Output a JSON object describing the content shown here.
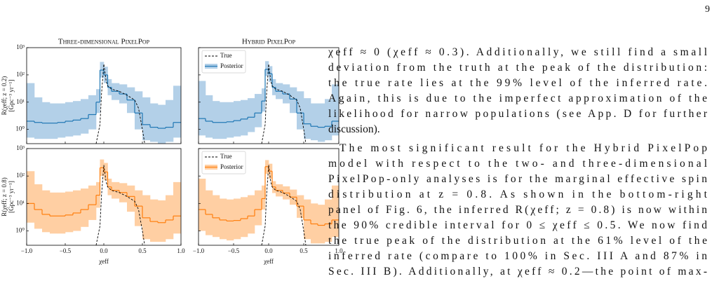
{
  "page_number": "9",
  "figure": {
    "xlabel": "χeff",
    "xlim": [
      -1,
      1
    ],
    "xticks": [
      {
        "value": -1,
        "label": "−1.0"
      },
      {
        "value": -0.5,
        "label": "−0.5"
      },
      {
        "value": 0,
        "label": "0.0"
      },
      {
        "value": 0.5,
        "label": "0.5"
      },
      {
        "value": 1,
        "label": "1.0"
      }
    ],
    "ylim": [
      0.3,
      1000
    ],
    "yticks": [
      {
        "value": 1,
        "label": "10⁰"
      },
      {
        "value": 10,
        "label": "10¹"
      },
      {
        "value": 100,
        "label": "10²"
      },
      {
        "value": 1000,
        "label": "10³"
      }
    ],
    "log_y": true,
    "bin_edges": [
      -1,
      -0.9,
      -0.8,
      -0.7,
      -0.6,
      -0.5,
      -0.4,
      -0.3,
      -0.2,
      -0.1,
      -0.05,
      0,
      0.05,
      0.1,
      0.2,
      0.3,
      0.4,
      0.5,
      0.6,
      0.7,
      0.8,
      0.9,
      1
    ],
    "true_curve": {
      "x": [
        -0.1,
        -0.05,
        -0.03,
        0,
        0.03,
        0.05,
        0.1,
        0.2,
        0.3,
        0.4,
        0.45,
        0.5,
        0.53
      ],
      "y": [
        0.3,
        1.5,
        20,
        250,
        60,
        40,
        30,
        25,
        18,
        12,
        6,
        1,
        0.3
      ]
    },
    "panels": [
      {
        "title": "Three-dimensional PixelPop",
        "ylabel": "R(χeff; z = 0.2)",
        "yunit": "[Gpc⁻³ yr⁻¹]",
        "color": "#1f77b4",
        "band_color": "#b3d0e8",
        "median": [
          2,
          1.8,
          1.7,
          1.7,
          1.8,
          2,
          2.2,
          2.5,
          3.5,
          10,
          150,
          100,
          35,
          25,
          20,
          12,
          4,
          1.5,
          1.2,
          1.1,
          1.2,
          1.8
        ],
        "lower": [
          0.5,
          0.45,
          0.45,
          0.45,
          0.5,
          0.55,
          0.6,
          0.7,
          1,
          4,
          80,
          50,
          18,
          12,
          9,
          4,
          1,
          0.4,
          0.35,
          0.3,
          0.35,
          0.5
        ],
        "upper": [
          50,
          15,
          10,
          9,
          9,
          10,
          11,
          13,
          18,
          30,
          300,
          200,
          70,
          50,
          45,
          35,
          25,
          15,
          9,
          8,
          12,
          40
        ]
      },
      {
        "title": "Hybrid PixelPop",
        "legend": [
          "True",
          "Posterior"
        ],
        "color": "#1f77b4",
        "band_color": "#b3d0e8",
        "median": [
          2.5,
          2,
          1.8,
          1.8,
          1.9,
          2.1,
          2.4,
          2.8,
          4,
          11,
          160,
          110,
          35,
          25,
          20,
          13,
          4,
          1.6,
          1.3,
          1.2,
          1.3,
          2
        ],
        "lower": [
          0.6,
          0.5,
          0.45,
          0.45,
          0.5,
          0.55,
          0.6,
          0.8,
          1.2,
          4.5,
          90,
          55,
          18,
          13,
          9,
          4,
          1,
          0.45,
          0.4,
          0.35,
          0.4,
          0.6
        ],
        "upper": [
          60,
          18,
          11,
          10,
          10,
          11,
          12,
          14,
          20,
          32,
          320,
          210,
          70,
          50,
          45,
          35,
          25,
          14,
          9,
          9,
          13,
          45
        ]
      },
      {
        "ylabel": "R(χeff; z = 0.8)",
        "yunit": "[Gpc⁻³ yr⁻¹]",
        "color": "#ff7f0e",
        "band_color": "#ffcfa3",
        "median": [
          10,
          6,
          4,
          3.5,
          3.5,
          3.8,
          4.5,
          6,
          9,
          20,
          200,
          140,
          40,
          30,
          25,
          18,
          8,
          3,
          2.2,
          2,
          2.5,
          3.5
        ],
        "lower": [
          2,
          1.2,
          0.9,
          0.8,
          0.8,
          0.9,
          1,
          1.4,
          2.5,
          7,
          100,
          70,
          20,
          15,
          11,
          5,
          1.5,
          0.5,
          0.4,
          0.4,
          0.5,
          0.8
        ],
        "upper": [
          150,
          50,
          30,
          25,
          25,
          27,
          30,
          35,
          45,
          60,
          400,
          300,
          80,
          60,
          55,
          45,
          30,
          20,
          14,
          13,
          20,
          60
        ]
      },
      {
        "legend": [
          "True",
          "Posterior"
        ],
        "color": "#ff7f0e",
        "band_color": "#ffcfa3",
        "median": [
          6,
          4,
          3,
          2.5,
          2.3,
          2.4,
          2.8,
          3.5,
          6,
          15,
          220,
          150,
          40,
          30,
          24,
          17,
          8,
          2.5,
          1.8,
          1.6,
          1.8,
          2.5
        ],
        "lower": [
          1,
          0.7,
          0.6,
          0.5,
          0.45,
          0.5,
          0.6,
          0.8,
          1.6,
          6,
          120,
          80,
          24,
          18,
          14,
          9,
          3,
          0.5,
          0.35,
          0.35,
          0.4,
          0.6
        ],
        "upper": [
          80,
          30,
          20,
          15,
          14,
          15,
          17,
          20,
          30,
          45,
          380,
          280,
          65,
          50,
          42,
          32,
          20,
          14,
          10,
          9,
          14,
          45
        ]
      }
    ]
  },
  "text": {
    "lines": [
      "χeff ≈ 0 (χeff ≈ 0.3). Additionally, we still find a small",
      "deviation from the truth at the peak of the distribution:",
      "the true rate lies at the 99% level of the inferred rate.",
      "Again, this is due to the imperfect approximation of the",
      "likelihood for narrow populations (see App. D for further",
      "discussion).",
      "The most significant result for the Hybrid PixelPop",
      "model with respect to the two- and three-dimensional",
      "PixelPop-only analyses is for the marginal effective spin",
      "distribution at z = 0.8. As shown in the bottom-right",
      "panel of Fig. 6, the inferred R(χeff; z = 0.8) is now within",
      "the 90% credible interval for 0 ≤ χeff ≤ 0.5. We now find",
      "the true peak of the distribution at the 61% level of the",
      "inferred rate (compare to 100% in Sec. III A and 87% in",
      "Sec. III B). Additionally, at χeff ≈ 0.2—the point of max-"
    ]
  }
}
